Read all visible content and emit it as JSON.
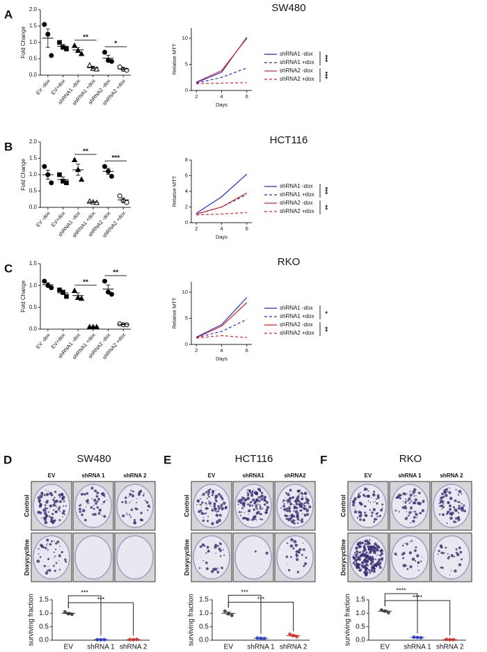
{
  "panels": [
    {
      "label": "A",
      "title": "SW480"
    },
    {
      "label": "B",
      "title": "HCT116"
    },
    {
      "label": "C",
      "title": "RKO"
    },
    {
      "label": "D",
      "title": "SW480"
    },
    {
      "label": "E",
      "title": "HCT116"
    },
    {
      "label": "F",
      "title": "RKO"
    }
  ],
  "colonies": [
    {
      "columns": [
        "EV",
        "shRNA 1",
        "shRNA 2"
      ],
      "rows": [
        "Control",
        "Doxycycline"
      ]
    },
    {
      "columns": [
        "EV",
        "shRNA1",
        "shRNA2"
      ],
      "rows": [
        "Control",
        "Doxycycline"
      ]
    },
    {
      "columns": [
        "EV",
        "shRNA 1",
        "shRNA 2"
      ],
      "rows": [
        "Control",
        "Doxycycline"
      ]
    }
  ],
  "chart_data": [
    {
      "type": "dot",
      "ylabel": "Fold Change",
      "categories": [
        "EV -dox",
        "EV+dox",
        "shRNA1 -dox",
        "shRNA1 +dox",
        "shRNA2 -dox",
        "shRNA2 +dox"
      ],
      "points": [
        [
          1.55,
          1.25,
          0.6
        ],
        [
          1.0,
          0.85,
          0.8
        ],
        [
          0.9,
          0.75,
          0.65
        ],
        [
          0.3,
          0.2,
          0.18
        ],
        [
          0.7,
          0.45,
          0.42
        ],
        [
          0.25,
          0.18,
          0.15
        ]
      ],
      "values": [
        1.13,
        0.88,
        0.77,
        0.23,
        0.52,
        0.19
      ],
      "errors": [
        0.28,
        0.06,
        0.07,
        0.04,
        0.09,
        0.03
      ],
      "markers": [
        "circle",
        "square",
        "triangle",
        "triangle-open",
        "circle",
        "circle-open"
      ],
      "ylim": [
        0,
        2
      ],
      "yticks": [
        {
          "value": 0,
          "label": "0.0"
        },
        0.5,
        {
          "value": 1,
          "label": "1.0"
        },
        1.5,
        {
          "value": 2,
          "label": "2.0"
        }
      ],
      "annotations": [
        {
          "text": "**",
          "between": [
            "shRNA1 -dox",
            "shRNA1 +dox"
          ]
        },
        {
          "text": "*",
          "between": [
            "shRNA2 -dox",
            "shRNA2 +dox"
          ]
        }
      ]
    },
    {
      "type": "line",
      "ylabel": "Relative MTT",
      "xlabel": "Days",
      "x": [
        2,
        4,
        6
      ],
      "series": [
        {
          "name": "shRNA1 -dox",
          "color": "#1f2bd0",
          "style": "solid",
          "values": [
            1.5,
            3.5,
            10.2
          ]
        },
        {
          "name": "shRNA1 +dox",
          "color": "#1f2bd0",
          "style": "dashed",
          "values": [
            1.4,
            2.5,
            4.3
          ]
        },
        {
          "name": "shRNA2 -dox",
          "color": "#e02020",
          "style": "solid",
          "values": [
            1.6,
            3.8,
            10.0
          ]
        },
        {
          "name": "shRNA2 +dox",
          "color": "#e02020",
          "style": "dashed",
          "values": [
            1.3,
            1.4,
            1.5
          ]
        }
      ],
      "xlim": [
        1.6,
        6.4
      ],
      "xticks": [
        2,
        4,
        6
      ],
      "ylim": [
        0,
        12
      ],
      "yticks": [
        0,
        5,
        10
      ],
      "significance": [
        {
          "text": "***",
          "between": [
            "shRNA1 -dox",
            "shRNA1 +dox"
          ]
        },
        {
          "text": "***",
          "between": [
            "shRNA2 -dox",
            "shRNA2 +dox"
          ]
        }
      ]
    },
    {
      "type": "dot",
      "ylabel": "Fold Change",
      "categories": [
        "EV -dox",
        "EV+dox",
        "shRNA1 -dox",
        "shRNA1 +dox",
        "shRNA2 -dox",
        "shRNA2 +dox"
      ],
      "points": [
        [
          1.25,
          1.0,
          0.75
        ],
        [
          1.0,
          0.8,
          0.75
        ],
        [
          1.45,
          1.15,
          0.85
        ],
        [
          0.18,
          0.16,
          0.14
        ],
        [
          1.25,
          1.1,
          0.95
        ],
        [
          0.35,
          0.2,
          0.15
        ]
      ],
      "values": [
        1.0,
        0.85,
        1.15,
        0.16,
        1.1,
        0.23
      ],
      "errors": [
        0.14,
        0.08,
        0.17,
        0.01,
        0.09,
        0.06
      ],
      "markers": [
        "circle",
        "square",
        "triangle",
        "triangle-open",
        "circle",
        "circle-open"
      ],
      "ylim": [
        0,
        2
      ],
      "yticks": [
        {
          "value": 0,
          "label": "0.0"
        },
        0.5,
        {
          "value": 1,
          "label": "1.0"
        },
        1.5,
        {
          "value": 2,
          "label": "2.0"
        }
      ],
      "annotations": [
        {
          "text": "**",
          "between": [
            "shRNA1 -dox",
            "shRNA1 +dox"
          ]
        },
        {
          "text": "***",
          "between": [
            "shRNA2 -dox",
            "shRNA2 +dox"
          ]
        }
      ]
    },
    {
      "type": "line",
      "ylabel": "Relative MTT",
      "xlabel": "Days",
      "x": [
        2,
        4,
        6
      ],
      "series": [
        {
          "name": "shRNA1 -dox",
          "color": "#1f2bd0",
          "style": "solid",
          "values": [
            1.2,
            3.3,
            6.2
          ]
        },
        {
          "name": "shRNA1 +dox",
          "color": "#1f2bd0",
          "style": "dashed",
          "values": [
            1.1,
            2.0,
            3.6
          ]
        },
        {
          "name": "shRNA2 -dox",
          "color": "#e02020",
          "style": "solid",
          "values": [
            1.1,
            2.0,
            3.8
          ]
        },
        {
          "name": "shRNA2 +dox",
          "color": "#e02020",
          "style": "dashed",
          "values": [
            1.0,
            1.1,
            1.3
          ]
        }
      ],
      "xlim": [
        1.6,
        6.4
      ],
      "xticks": [
        2,
        4,
        6
      ],
      "ylim": [
        0,
        8
      ],
      "yticks": [
        0,
        2,
        4,
        6,
        8
      ],
      "significance": [
        {
          "text": "***",
          "between": [
            "shRNA1 -dox",
            "shRNA1 +dox"
          ]
        },
        {
          "text": "**",
          "between": [
            "shRNA2 -dox",
            "shRNA2 +dox"
          ]
        }
      ]
    },
    {
      "type": "dot",
      "ylabel": "Fold Change",
      "categories": [
        "EV -dox",
        "EV+dox",
        "shRNA1 -dox",
        "shRNA1 +dox",
        "shRNA2 -dox",
        "shRNA2 +dox"
      ],
      "points": [
        [
          1.1,
          1.0,
          0.95
        ],
        [
          0.9,
          0.85,
          0.75
        ],
        [
          0.88,
          0.72,
          0.7
        ],
        [
          0.05,
          0.05,
          0.05
        ],
        [
          1.1,
          0.85,
          0.8
        ],
        [
          0.12,
          0.1,
          0.1
        ]
      ],
      "values": [
        1.02,
        0.83,
        0.77,
        0.05,
        0.92,
        0.11
      ],
      "errors": [
        0.04,
        0.04,
        0.06,
        0.0,
        0.09,
        0.01
      ],
      "markers": [
        "circle",
        "square",
        "triangle",
        "triangle",
        "circle",
        "circle-open"
      ],
      "ylim": [
        0,
        1.5
      ],
      "yticks": [
        {
          "value": 0,
          "label": "0.0"
        },
        0.5,
        {
          "value": 1,
          "label": "1.0"
        },
        1.5
      ],
      "annotations": [
        {
          "text": "**",
          "between": [
            "shRNA1 -dox",
            "shRNA1 +dox"
          ]
        },
        {
          "text": "**",
          "between": [
            "shRNA2 -dox",
            "shRNA2 +dox"
          ]
        }
      ]
    },
    {
      "type": "line",
      "ylabel": "Relative MTT",
      "xlabel": "Days",
      "x": [
        2,
        4,
        6
      ],
      "series": [
        {
          "name": "shRNA1 -dox",
          "color": "#1f2bd0",
          "style": "solid",
          "values": [
            1.4,
            3.8,
            9.0
          ]
        },
        {
          "name": "shRNA1 +dox",
          "color": "#1f2bd0",
          "style": "dashed",
          "values": [
            1.3,
            2.5,
            4.8
          ]
        },
        {
          "name": "shRNA2 -dox",
          "color": "#e02020",
          "style": "solid",
          "values": [
            1.3,
            3.5,
            8.0
          ]
        },
        {
          "name": "shRNA2 +dox",
          "color": "#e02020",
          "style": "dashed",
          "values": [
            1.2,
            1.7,
            1.3
          ]
        }
      ],
      "xlim": [
        1.6,
        6.4
      ],
      "xticks": [
        2,
        4,
        6
      ],
      "ylim": [
        0,
        12
      ],
      "yticks": [
        0,
        5,
        10
      ],
      "significance": [
        {
          "text": "*",
          "between": [
            "shRNA1 -dox",
            "shRNA1 +dox"
          ]
        },
        {
          "text": "**",
          "between": [
            "shRNA2 -dox",
            "shRNA2 +dox"
          ]
        }
      ]
    },
    {
      "type": "survival",
      "ylabel": "surviving fraction",
      "categories": [
        "EV",
        "shRNA 1",
        "shRNA 2"
      ],
      "points": [
        [
          1.05,
          0.98,
          0.96
        ],
        [
          0.02,
          0.02,
          0.02
        ],
        [
          0.02,
          0.02,
          0.03
        ]
      ],
      "values": [
        1.0,
        0.02,
        0.02
      ],
      "errors": [
        0.03,
        0.0,
        0.01
      ],
      "colors": [
        "#333333",
        "#2233cc",
        "#dd2222"
      ],
      "ylim": [
        0,
        1.5
      ],
      "yticks": [
        {
          "value": 0,
          "label": "0.0"
        },
        0.5,
        {
          "value": 1,
          "label": "1.0"
        },
        1.5
      ],
      "annotations": [
        {
          "text": "***",
          "between": [
            "EV",
            "shRNA 1"
          ]
        },
        {
          "text": "***",
          "between": [
            "EV",
            "shRNA 2"
          ]
        }
      ]
    },
    {
      "type": "survival",
      "ylabel": "surviving fraction",
      "categories": [
        "EV",
        "shRNA 1",
        "shRNA 2"
      ],
      "points": [
        [
          1.08,
          0.98,
          0.92
        ],
        [
          0.08,
          0.07,
          0.06
        ],
        [
          0.22,
          0.17,
          0.13
        ]
      ],
      "values": [
        1.0,
        0.07,
        0.17
      ],
      "errors": [
        0.05,
        0.01,
        0.03
      ],
      "colors": [
        "#333333",
        "#2233cc",
        "#dd2222"
      ],
      "ylim": [
        0,
        1.5
      ],
      "yticks": [
        {
          "value": 0,
          "label": "0.0"
        },
        0.5,
        {
          "value": 1,
          "label": "1.0"
        },
        1.5
      ],
      "annotations": [
        {
          "text": "***",
          "between": [
            "EV",
            "shRNA 1"
          ]
        },
        {
          "text": "***",
          "between": [
            "EV",
            "shRNA 2"
          ]
        }
      ]
    },
    {
      "type": "survival",
      "ylabel": "surviving fraction",
      "categories": [
        "EV",
        "shRNA 1",
        "shRNA 2"
      ],
      "points": [
        [
          1.12,
          1.08,
          1.02
        ],
        [
          0.11,
          0.1,
          0.09
        ],
        [
          0.03,
          0.02,
          0.02
        ]
      ],
      "values": [
        1.08,
        0.1,
        0.02
      ],
      "errors": [
        0.03,
        0.01,
        0.01
      ],
      "colors": [
        "#333333",
        "#2233cc",
        "#dd2222"
      ],
      "ylim": [
        0,
        1.5
      ],
      "yticks": [
        {
          "value": 0,
          "label": "0.0"
        },
        0.5,
        {
          "value": 1,
          "label": "1.0"
        },
        1.5
      ],
      "annotations": [
        {
          "text": "****",
          "between": [
            "EV",
            "shRNA 1"
          ]
        },
        {
          "text": "****",
          "between": [
            "EV",
            "shRNA 2"
          ]
        }
      ]
    }
  ]
}
